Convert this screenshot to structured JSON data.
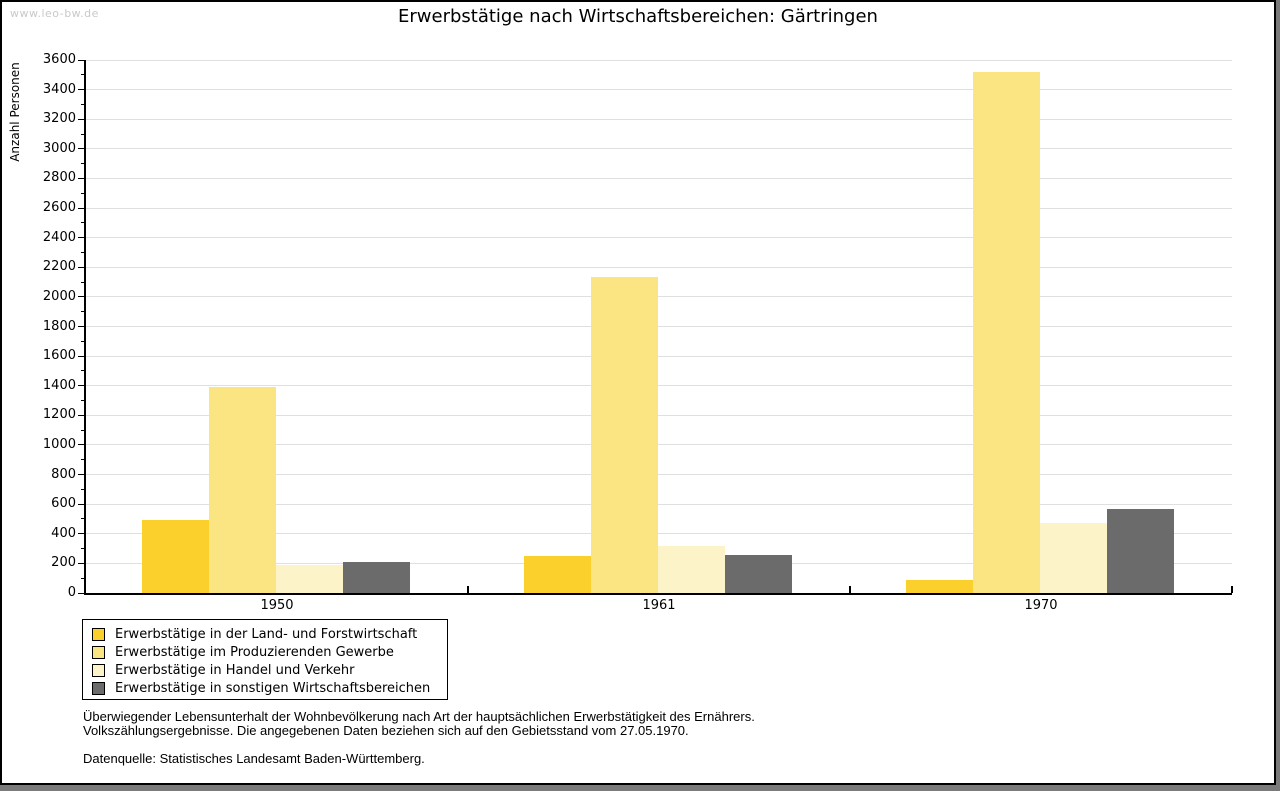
{
  "watermark": "www.leo-bw.de",
  "header": {
    "title": "Erwerbstätige nach Wirtschaftsbereichen: Gärtringen"
  },
  "footnotes": {
    "line1": "Überwiegender Lebensunterhalt der Wohnbevölkerung nach Art der hauptsächlichen Erwerbstätigkeit des Ernährers.",
    "line2": "Volkszählungsergebnisse. Die angegebenen Daten beziehen sich auf den Gebietsstand vom 27.05.1970.",
    "source": "Datenquelle: Statistisches Landesamt Baden-Württemberg."
  },
  "chart_data": {
    "type": "bar",
    "title": "Erwerbstätige nach Wirtschaftsbereichen: Gärtringen",
    "xlabel": "",
    "ylabel": "Anzahl Personen",
    "categories": [
      "1950",
      "1961",
      "1970"
    ],
    "series": [
      {
        "name": "Erwerbstätige in der Land- und Forstwirtschaft",
        "color": "#FBD02D",
        "values": [
          490,
          250,
          90
        ]
      },
      {
        "name": "Erwerbstätige im Produzierenden Gewerbe",
        "color": "#FAE582",
        "values": [
          1390,
          2135,
          3520
        ]
      },
      {
        "name": "Erwerbstätige in Handel und Verkehr",
        "color": "#FCF3C8",
        "values": [
          190,
          320,
          475
        ]
      },
      {
        "name": "Erwerbstätige in sonstigen Wirtschaftsbereichen",
        "color": "#6B6B6B",
        "values": [
          210,
          255,
          565
        ]
      }
    ],
    "ylim": [
      0,
      3600
    ],
    "ytick_step": 200,
    "yminor_step": 100,
    "grid": true,
    "gridline_color": "#E0E0E0",
    "axis_color": "#000000",
    "legend_position": "bottom-left"
  }
}
